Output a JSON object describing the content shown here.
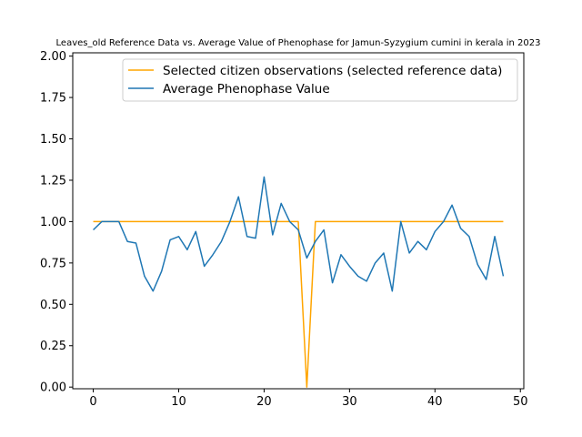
{
  "chart_data": {
    "type": "line",
    "title": "Leaves_old Reference Data vs. Average Value of Phenophase for Jamun-Syzygium cumini in kerala in 2023",
    "xlabel": "",
    "ylabel": "",
    "xlim": [
      -2.4,
      50.4
    ],
    "ylim": [
      -0.01,
      2.02
    ],
    "x_ticks": [
      0,
      10,
      20,
      30,
      40,
      50
    ],
    "y_ticks": [
      0.0,
      0.25,
      0.5,
      0.75,
      1.0,
      1.25,
      1.5,
      1.75,
      2.0
    ],
    "grid": false,
    "legend": "top-right",
    "x": [
      0,
      1,
      2,
      3,
      4,
      5,
      6,
      7,
      8,
      9,
      10,
      11,
      12,
      13,
      14,
      15,
      16,
      17,
      18,
      19,
      20,
      21,
      22,
      23,
      24,
      25,
      26,
      27,
      28,
      29,
      30,
      31,
      32,
      33,
      34,
      35,
      36,
      37,
      38,
      39,
      40,
      41,
      42,
      43,
      44,
      45,
      46,
      47,
      48
    ],
    "series": [
      {
        "name": "Selected citizen observations (selected reference data)",
        "color": "#ffa500",
        "values": [
          1,
          1,
          1,
          1,
          1,
          1,
          1,
          1,
          1,
          1,
          1,
          1,
          1,
          1,
          1,
          1,
          1,
          1,
          1,
          1,
          1,
          1,
          1,
          1,
          1,
          0,
          1,
          1,
          1,
          1,
          1,
          1,
          1,
          1,
          1,
          1,
          1,
          1,
          1,
          1,
          1,
          1,
          1,
          1,
          1,
          1,
          1,
          1,
          1
        ]
      },
      {
        "name": "Average Phenophase Value",
        "color": "#1f77b4",
        "values": [
          0.95,
          1.0,
          1.0,
          1.0,
          0.88,
          0.87,
          0.67,
          0.58,
          0.7,
          0.89,
          0.91,
          0.83,
          0.94,
          0.73,
          0.8,
          0.88,
          1.0,
          1.15,
          0.91,
          0.9,
          1.27,
          0.92,
          1.11,
          1.0,
          0.95,
          0.78,
          0.88,
          0.95,
          0.63,
          0.8,
          0.73,
          0.67,
          0.64,
          0.75,
          0.81,
          0.58,
          1.0,
          0.81,
          0.88,
          0.83,
          0.94,
          1.0,
          1.1,
          0.96,
          0.91,
          0.74,
          0.65,
          0.91,
          0.67
        ]
      }
    ]
  }
}
